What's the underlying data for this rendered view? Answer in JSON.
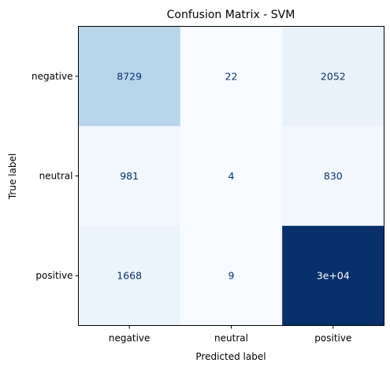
{
  "chart_data": {
    "type": "heatmap",
    "title": "Confusion Matrix - SVM",
    "xlabel": "Predicted label",
    "ylabel": "True label",
    "x_categories": [
      "negative",
      "neutral",
      "positive"
    ],
    "y_categories": [
      "negative",
      "neutral",
      "positive"
    ],
    "values": [
      [
        8729,
        22,
        2052
      ],
      [
        981,
        4,
        830
      ],
      [
        1668,
        9,
        30000
      ]
    ],
    "value_labels": [
      [
        "8729",
        "22",
        "2052"
      ],
      [
        "981",
        "4",
        "830"
      ],
      [
        "1668",
        "9",
        "3e+04"
      ]
    ],
    "colormap": "Blues",
    "color_low": "#f7fbff",
    "color_high": "#08306b",
    "text_dark": "#08306b",
    "text_light": "#ffffff",
    "grid": false,
    "colorbar": false
  }
}
